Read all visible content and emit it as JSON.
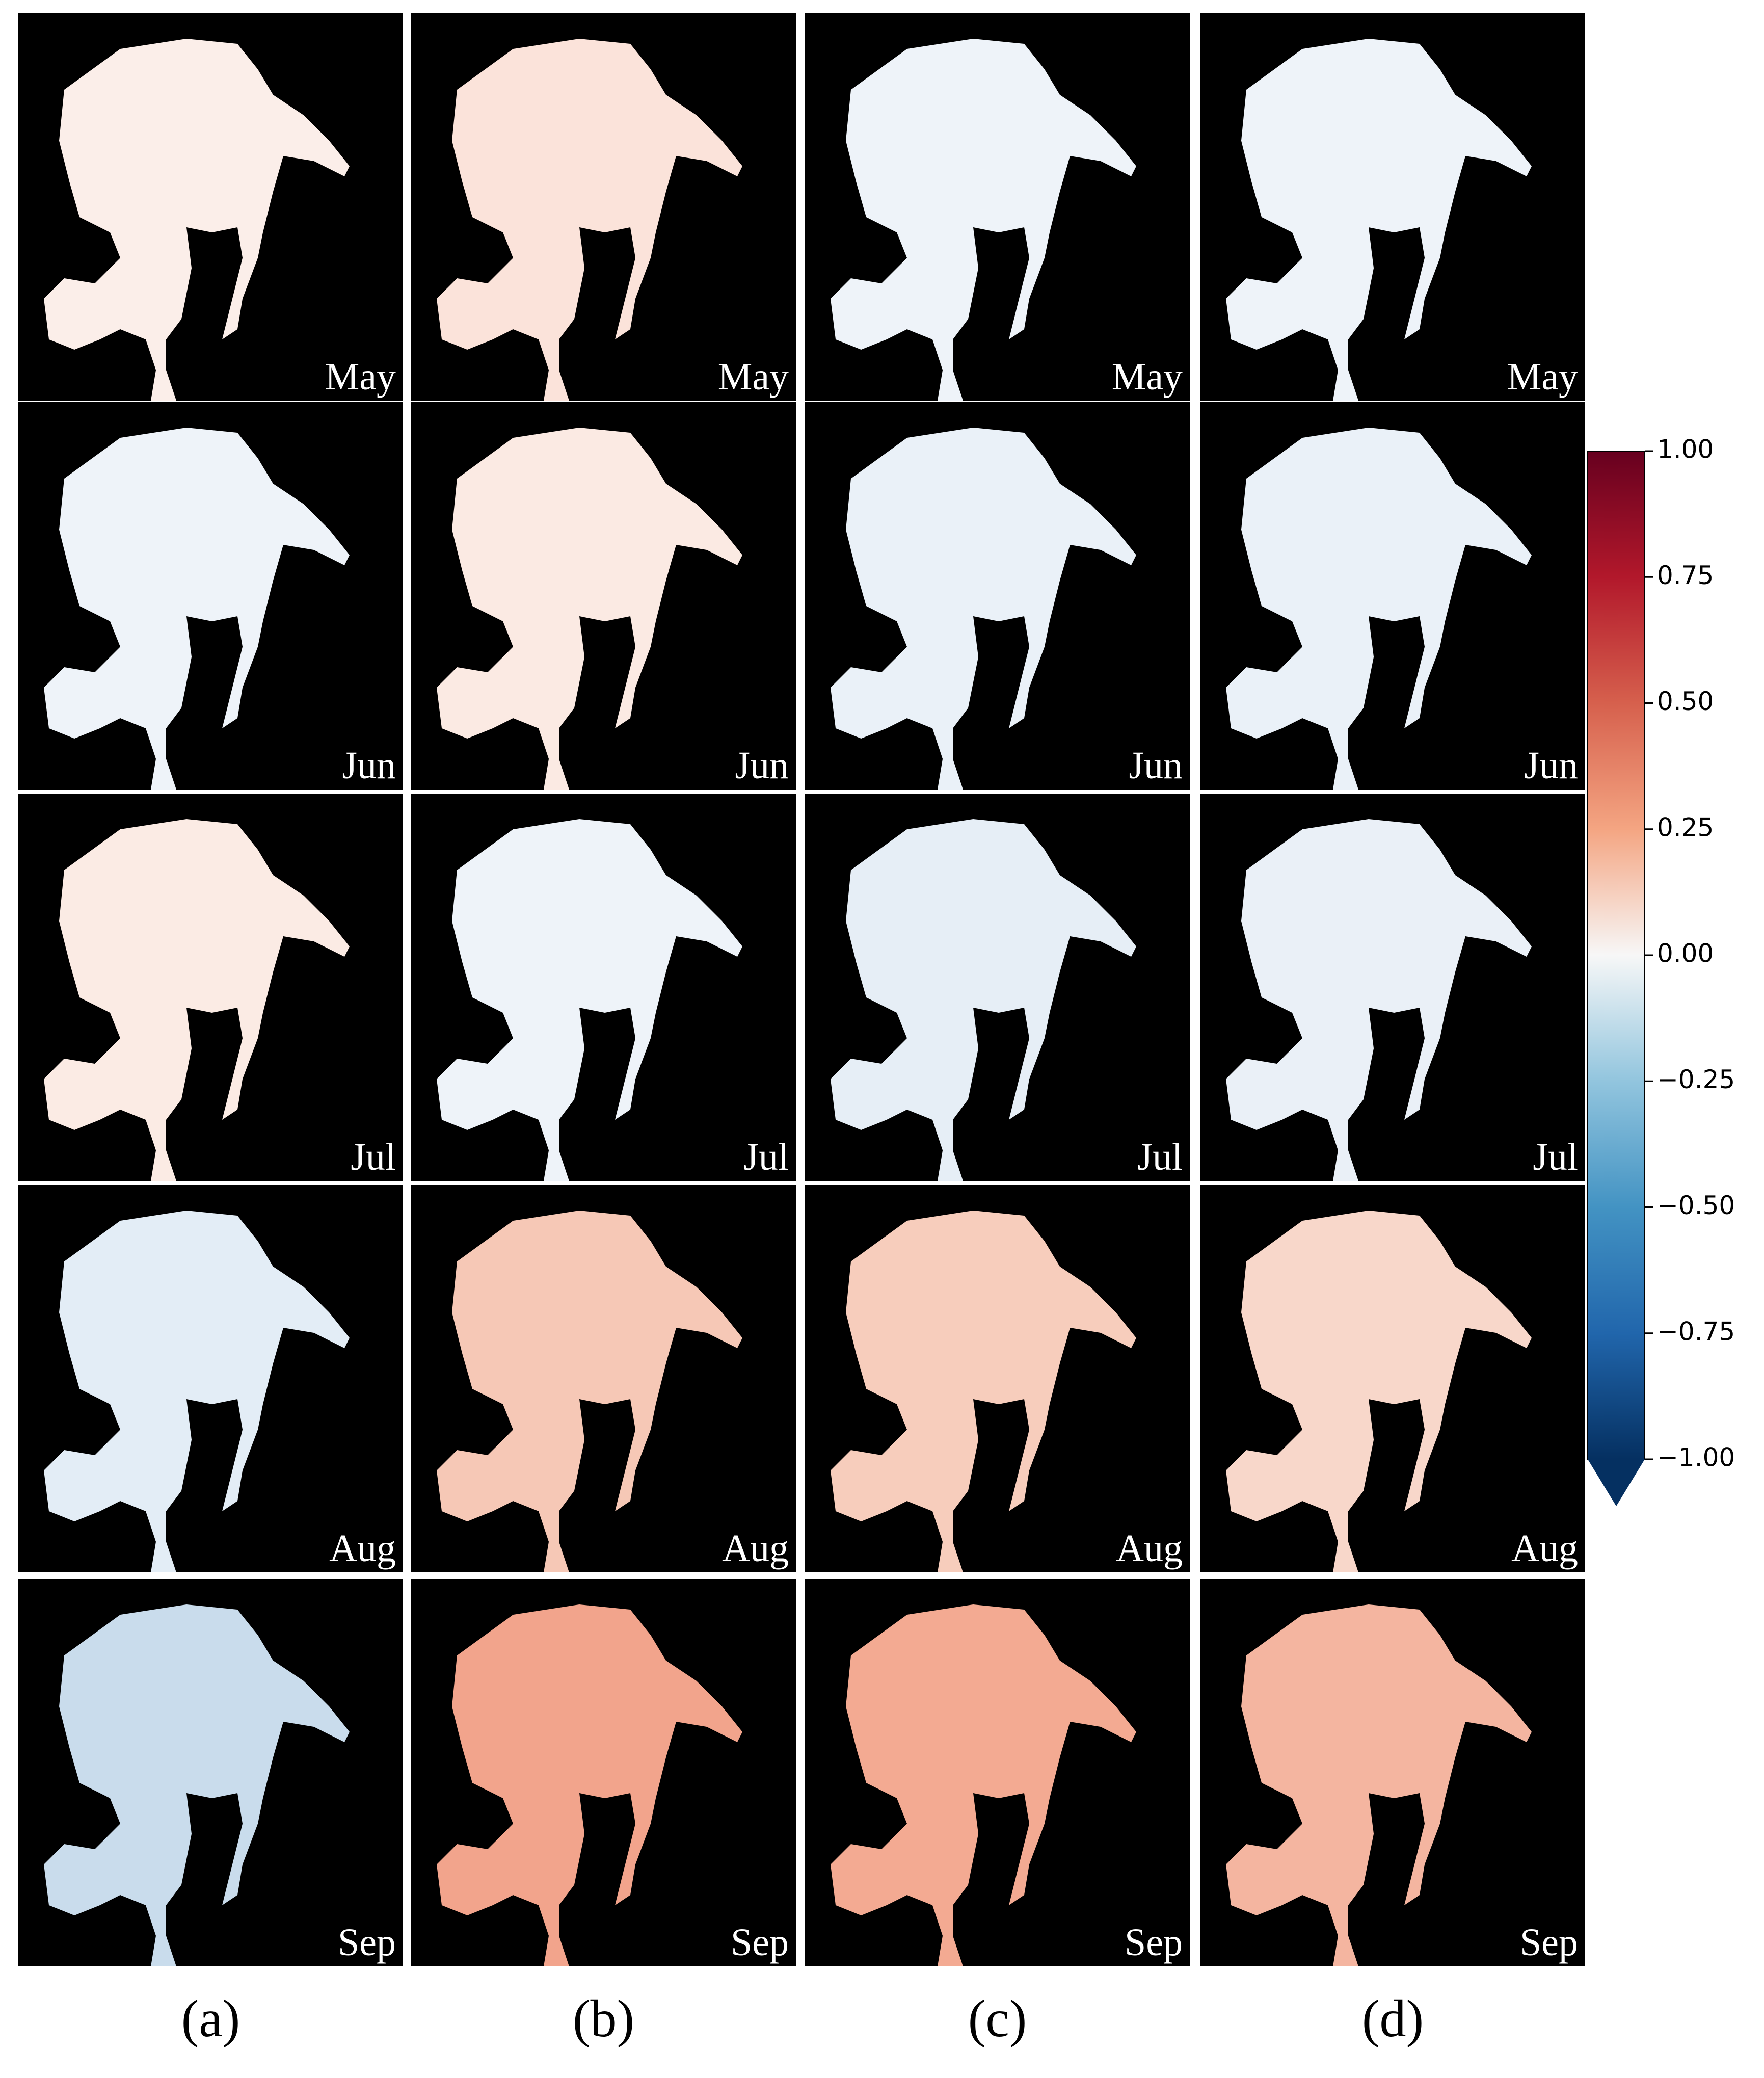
{
  "figure": {
    "columns": [
      "(a)",
      "(b)",
      "(c)",
      "(d)"
    ],
    "rows": [
      "May",
      "Jun",
      "Jul",
      "Aug",
      "Sep"
    ],
    "colorbar": {
      "lim": [
        -1,
        1
      ],
      "extend": "min",
      "ticks": [
        {
          "value": 1,
          "label": "1.00"
        },
        {
          "value": 0.75,
          "label": "0.75"
        },
        {
          "value": 0.5,
          "label": "0.50"
        },
        {
          "value": 0.25,
          "label": "0.25"
        },
        {
          "value": 0,
          "label": "0.00"
        },
        {
          "value": -0.25,
          "label": "−0.25"
        },
        {
          "value": -0.5,
          "label": "−0.50"
        },
        {
          "value": -0.75,
          "label": "−0.75"
        },
        {
          "value": -1,
          "label": "−1.00"
        }
      ]
    }
  }
}
